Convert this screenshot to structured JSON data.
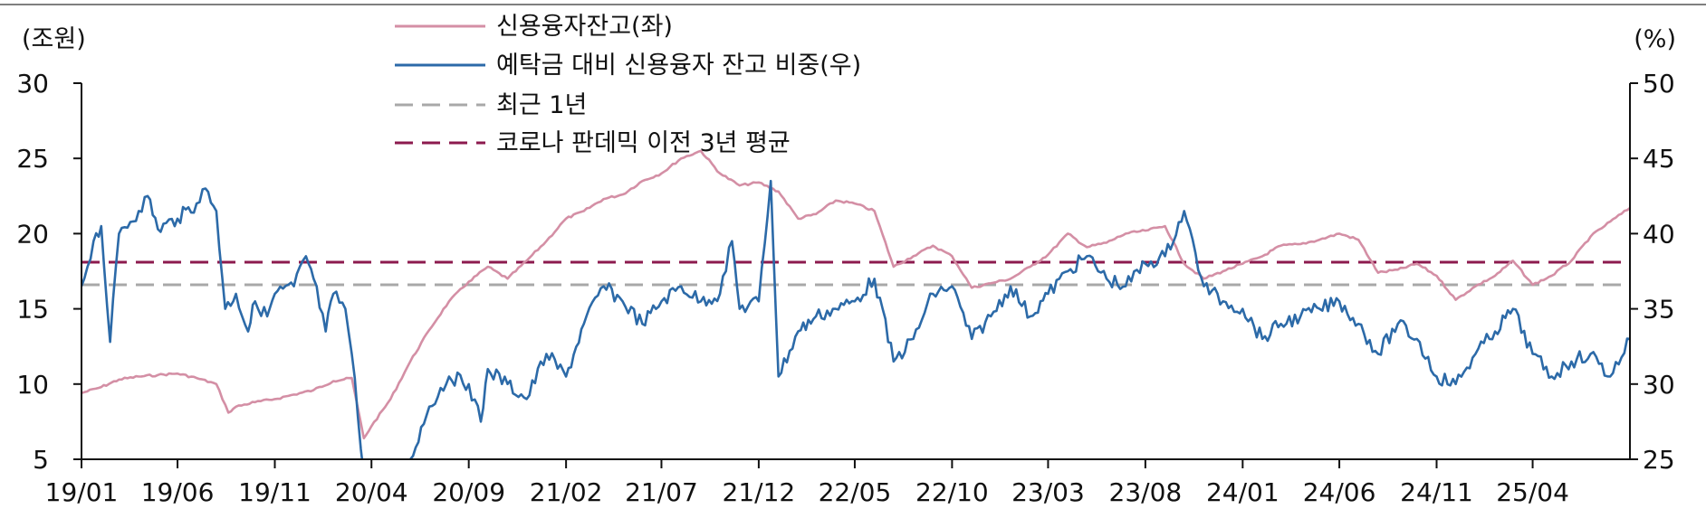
{
  "chart_data": {
    "type": "line",
    "title": "",
    "y_left_label": "(조원)",
    "y_right_label": "(%)",
    "y_left_range": [
      5,
      30
    ],
    "y_left_ticks": [
      "30",
      "25",
      "20",
      "15",
      "10",
      "5"
    ],
    "y_right_range": [
      25,
      50
    ],
    "y_right_ticks": [
      "50",
      "45",
      "40",
      "35",
      "30",
      "25"
    ],
    "x_range": [
      "2019-01",
      "2025-09"
    ],
    "x_ticks": [
      "19/01",
      "19/06",
      "19/11",
      "20/04",
      "20/09",
      "21/02",
      "21/07",
      "21/12",
      "22/05",
      "22/10",
      "23/03",
      "23/08",
      "24/01",
      "24/06",
      "24/11",
      "25/04"
    ],
    "grid": false,
    "legend_position": "top-center",
    "legend": [
      {
        "label": "신용융자잔고(좌)",
        "color": "#d48fa5",
        "style": "solid"
      },
      {
        "label": "예탁금 대비 신용융자 잔고 비중(우)",
        "color": "#2c6aa8",
        "style": "solid"
      },
      {
        "label": "최근 1년",
        "color": "#a8a8a8",
        "style": "dashed"
      },
      {
        "label": "코로나 판데믹 이전 3년 평균",
        "color": "#8c1a4e",
        "style": "dashed"
      }
    ],
    "series": [
      {
        "name": "신용융자잔고(좌)",
        "axis": "left",
        "color": "#d48fa5",
        "points": [
          [
            "2019-01",
            9.4
          ],
          [
            "2019-02",
            9.8
          ],
          [
            "2019-03",
            10.3
          ],
          [
            "2019-04",
            10.5
          ],
          [
            "2019-05",
            10.6
          ],
          [
            "2019-06",
            10.7
          ],
          [
            "2019-07",
            10.4
          ],
          [
            "2019-08",
            10.0
          ],
          [
            "2019-08-20",
            8.1
          ],
          [
            "2019-09",
            8.5
          ],
          [
            "2019-10",
            8.8
          ],
          [
            "2019-11",
            9.0
          ],
          [
            "2019-12",
            9.3
          ],
          [
            "2020-01",
            9.6
          ],
          [
            "2020-02",
            10.2
          ],
          [
            "2020-03",
            10.4
          ],
          [
            "2020-03-20",
            6.4
          ],
          [
            "2020-04",
            7.2
          ],
          [
            "2020-05",
            9.0
          ],
          [
            "2020-06",
            11.5
          ],
          [
            "2020-07",
            13.6
          ],
          [
            "2020-08",
            15.5
          ],
          [
            "2020-09",
            16.8
          ],
          [
            "2020-10",
            17.8
          ],
          [
            "2020-11",
            17.0
          ],
          [
            "2020-12",
            18.2
          ],
          [
            "2021-01",
            19.5
          ],
          [
            "2021-02",
            21.0
          ],
          [
            "2021-03",
            21.5
          ],
          [
            "2021-04",
            22.3
          ],
          [
            "2021-05",
            22.6
          ],
          [
            "2021-06",
            23.5
          ],
          [
            "2021-07",
            24.0
          ],
          [
            "2021-08",
            25.0
          ],
          [
            "2021-09",
            25.5
          ],
          [
            "2021-10",
            24.0
          ],
          [
            "2021-11",
            23.2
          ],
          [
            "2021-12",
            23.4
          ],
          [
            "2022-01",
            22.8
          ],
          [
            "2022-02",
            21.0
          ],
          [
            "2022-03",
            21.3
          ],
          [
            "2022-04",
            22.2
          ],
          [
            "2022-05",
            22.0
          ],
          [
            "2022-06",
            21.5
          ],
          [
            "2022-07",
            17.8
          ],
          [
            "2022-08",
            18.5
          ],
          [
            "2022-09",
            19.2
          ],
          [
            "2022-10",
            18.5
          ],
          [
            "2022-11",
            16.4
          ],
          [
            "2022-12",
            16.7
          ],
          [
            "2023-01",
            17.0
          ],
          [
            "2023-02",
            17.8
          ],
          [
            "2023-03",
            18.6
          ],
          [
            "2023-04",
            20.0
          ],
          [
            "2023-05",
            19.1
          ],
          [
            "2023-06",
            19.4
          ],
          [
            "2023-07",
            20.0
          ],
          [
            "2023-08",
            20.2
          ],
          [
            "2023-09",
            20.5
          ],
          [
            "2023-10",
            18.0
          ],
          [
            "2023-11",
            17.0
          ],
          [
            "2023-12",
            17.5
          ],
          [
            "2024-01",
            18.0
          ],
          [
            "2024-02",
            18.5
          ],
          [
            "2024-03",
            19.2
          ],
          [
            "2024-04",
            19.3
          ],
          [
            "2024-05",
            19.6
          ],
          [
            "2024-06",
            20.0
          ],
          [
            "2024-07",
            19.6
          ],
          [
            "2024-08",
            17.4
          ],
          [
            "2024-09",
            17.6
          ],
          [
            "2024-10",
            18.0
          ],
          [
            "2024-11",
            17.2
          ],
          [
            "2024-12",
            15.6
          ],
          [
            "2025-01",
            16.5
          ],
          [
            "2025-02",
            17.2
          ],
          [
            "2025-03",
            18.2
          ],
          [
            "2025-04",
            16.6
          ],
          [
            "2025-05",
            17.2
          ],
          [
            "2025-06",
            18.2
          ],
          [
            "2025-07",
            19.8
          ],
          [
            "2025-08",
            20.8
          ],
          [
            "2025-09",
            21.7
          ]
        ]
      },
      {
        "name": "예탁금 대비 신용융자 잔고 비중(우)",
        "axis": "right",
        "color": "#2c6aa8",
        "points": [
          [
            "2019-01",
            36.5
          ],
          [
            "2019-01-20",
            39.5
          ],
          [
            "2019-02",
            40.5
          ],
          [
            "2019-02-15",
            32.8
          ],
          [
            "2019-03",
            40.0
          ],
          [
            "2019-04",
            41.5
          ],
          [
            "2019-04-15",
            42.5
          ],
          [
            "2019-05",
            40.3
          ],
          [
            "2019-06",
            41.0
          ],
          [
            "2019-07",
            42.0
          ],
          [
            "2019-07-15",
            43.0
          ],
          [
            "2019-08",
            41.5
          ],
          [
            "2019-08-15",
            35.0
          ],
          [
            "2019-09",
            36.0
          ],
          [
            "2019-09-20",
            33.5
          ],
          [
            "2019-10",
            35.5
          ],
          [
            "2019-10-20",
            34.5
          ],
          [
            "2019-11",
            36.0
          ],
          [
            "2019-12",
            36.5
          ],
          [
            "2019-12-20",
            38.5
          ],
          [
            "2020-01",
            37.0
          ],
          [
            "2020-01-20",
            33.5
          ],
          [
            "2020-02",
            36.0
          ],
          [
            "2020-02-20",
            35.0
          ],
          [
            "2020-03",
            32.0
          ],
          [
            "2020-03-20",
            24.0
          ],
          [
            "2020-04",
            22.0
          ],
          [
            "2020-05",
            21.0
          ],
          [
            "2020-06",
            25.0
          ],
          [
            "2020-07",
            28.5
          ],
          [
            "2020-08",
            30.5
          ],
          [
            "2020-09",
            30.0
          ],
          [
            "2020-09-20",
            27.5
          ],
          [
            "2020-10",
            31.0
          ],
          [
            "2020-11",
            30.0
          ],
          [
            "2020-12",
            29.0
          ],
          [
            "2021-01",
            32.0
          ],
          [
            "2021-02",
            30.5
          ],
          [
            "2021-03",
            34.0
          ],
          [
            "2021-04",
            36.5
          ],
          [
            "2021-05",
            35.5
          ],
          [
            "2021-06",
            34.0
          ],
          [
            "2021-07",
            35.5
          ],
          [
            "2021-08",
            36.5
          ],
          [
            "2021-09",
            35.5
          ],
          [
            "2021-10",
            36.0
          ],
          [
            "2021-10-20",
            39.5
          ],
          [
            "2021-11",
            35.0
          ],
          [
            "2021-12",
            35.5
          ],
          [
            "2021-12-20",
            43.5
          ],
          [
            "2022-01",
            30.5
          ],
          [
            "2022-02",
            33.5
          ],
          [
            "2022-03",
            34.5
          ],
          [
            "2022-04",
            35.0
          ],
          [
            "2022-05",
            35.5
          ],
          [
            "2022-06",
            37.0
          ],
          [
            "2022-07",
            31.5
          ],
          [
            "2022-08",
            33.0
          ],
          [
            "2022-09",
            36.0
          ],
          [
            "2022-10",
            36.5
          ],
          [
            "2022-11",
            33.0
          ],
          [
            "2022-12",
            34.5
          ],
          [
            "2023-01",
            36.5
          ],
          [
            "2023-02",
            34.5
          ],
          [
            "2023-03",
            36.0
          ],
          [
            "2023-04",
            37.5
          ],
          [
            "2023-05",
            38.5
          ],
          [
            "2023-06",
            37.0
          ],
          [
            "2023-07",
            36.5
          ],
          [
            "2023-08",
            38.0
          ],
          [
            "2023-09",
            38.5
          ],
          [
            "2023-10",
            41.5
          ],
          [
            "2023-11",
            36.5
          ],
          [
            "2023-12",
            35.5
          ],
          [
            "2024-01",
            35.0
          ],
          [
            "2024-02",
            33.0
          ],
          [
            "2024-03",
            34.0
          ],
          [
            "2024-04",
            34.5
          ],
          [
            "2024-05",
            35.0
          ],
          [
            "2024-06",
            35.5
          ],
          [
            "2024-07",
            34.0
          ],
          [
            "2024-08",
            32.0
          ],
          [
            "2024-09",
            34.0
          ],
          [
            "2024-10",
            33.0
          ],
          [
            "2024-11",
            30.5
          ],
          [
            "2024-12",
            30.0
          ],
          [
            "2025-01",
            32.0
          ],
          [
            "2025-02",
            33.5
          ],
          [
            "2025-03",
            35.0
          ],
          [
            "2025-04",
            32.0
          ],
          [
            "2025-05",
            30.5
          ],
          [
            "2025-06",
            31.5
          ],
          [
            "2025-07",
            32.0
          ],
          [
            "2025-08",
            30.5
          ],
          [
            "2025-09",
            33.0
          ]
        ]
      },
      {
        "name": "최근 1년",
        "axis": "left",
        "color": "#a8a8a8",
        "constant": 16.6
      },
      {
        "name": "코로나 판데믹 이전 3년 평균",
        "axis": "left",
        "color": "#8c1a4e",
        "constant": 18.1
      }
    ]
  }
}
